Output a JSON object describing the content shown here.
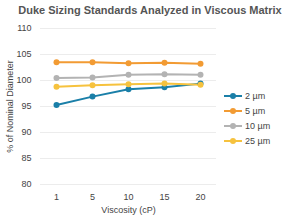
{
  "chart_data": {
    "type": "line",
    "title": "Duke Sizing Standards Analyzed in Viscous Matrix",
    "x_label": "Viscosity (cP)",
    "y_label": "% of Nominal Diameter",
    "categories": [
      "1",
      "5",
      "10",
      "15",
      "20"
    ],
    "series": [
      {
        "name": "2 µm",
        "color": "#1a7fa8",
        "values": [
          95.3,
          96.9,
          98.3,
          98.7,
          99.4
        ]
      },
      {
        "name": "5 µm",
        "color": "#f29b33",
        "values": [
          103.5,
          103.5,
          103.3,
          103.4,
          103.2
        ]
      },
      {
        "name": "10 µm",
        "color": "#b3b3b3",
        "values": [
          100.5,
          100.6,
          101.1,
          101.2,
          101.1
        ]
      },
      {
        "name": "25 µm",
        "color": "#f6c23e",
        "values": [
          98.8,
          99.1,
          99.3,
          99.4,
          99.2
        ]
      }
    ],
    "ylim": [
      80,
      110
    ],
    "yticks": [
      80,
      85,
      90,
      95,
      100,
      105,
      110
    ],
    "grid": true,
    "legend": "right",
    "marker": "circle"
  }
}
